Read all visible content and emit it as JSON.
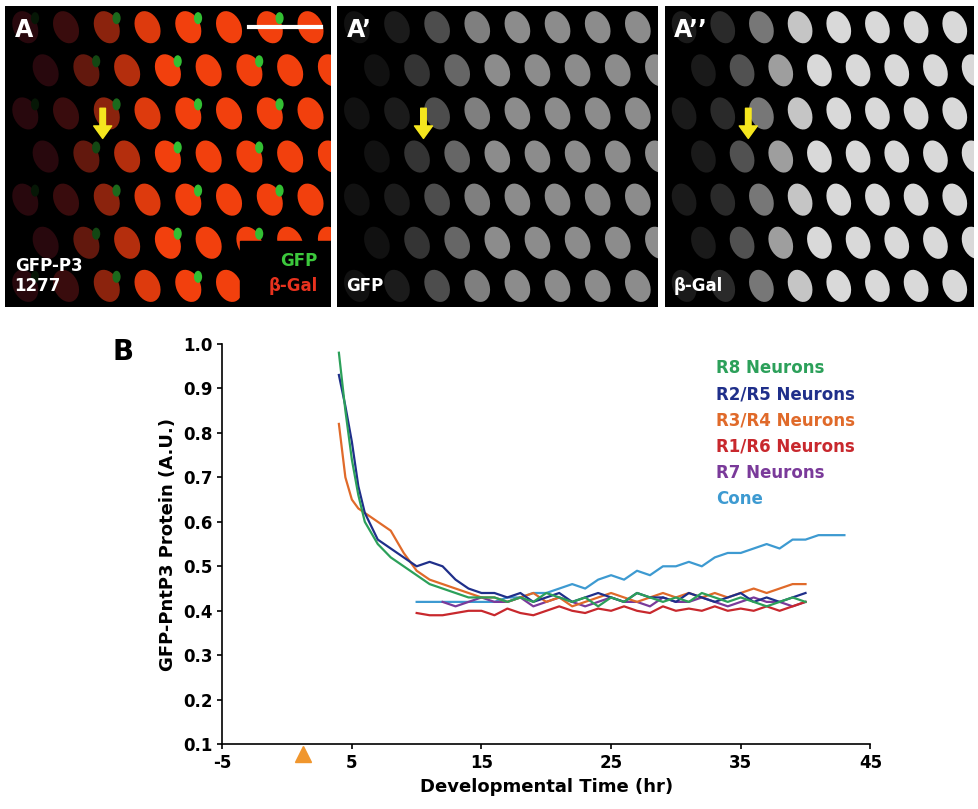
{
  "panels": [
    {
      "label": "A",
      "caption": "GFP-P3\n1277",
      "channels": [
        {
          "name": "GFP",
          "color": "#3cc83c"
        },
        {
          "name": "β-Gal",
          "color": "#e8321e"
        }
      ]
    },
    {
      "label": "A’",
      "channels": [
        {
          "name": "GFP",
          "color": "#ffffff"
        }
      ]
    },
    {
      "label": "A’’",
      "channels": [
        {
          "name": "β-Gal",
          "color": "#ffffff"
        }
      ]
    }
  ],
  "chart_data": {
    "type": "line",
    "panel_label": "B",
    "x_label": "Developmental Time (hr)",
    "y_label": "GFP-PntP3 Protein (A.U.)",
    "xlim": [
      -5,
      45
    ],
    "xticks": [
      -5,
      5,
      15,
      25,
      35,
      45
    ],
    "ylim": [
      0.1,
      1.0
    ],
    "yticks": [
      0.1,
      0.2,
      0.3,
      0.4,
      0.5,
      0.6,
      0.7,
      0.8,
      0.9,
      {
        "value": 1.0,
        "label": "1.0"
      }
    ],
    "grid": false,
    "legend": "upper right",
    "event_marker": {
      "x": 1.2,
      "color": "#f0962d",
      "marker": "triangle"
    },
    "series": [
      {
        "name": "R8 Neurons",
        "color": "#2ca05a",
        "x": [
          4,
          4.5,
          5,
          5.5,
          6,
          7,
          8,
          9,
          10,
          11,
          12,
          13,
          14,
          15,
          16,
          17,
          18,
          19,
          20,
          21,
          22,
          23,
          24,
          25,
          26,
          27,
          28,
          29,
          30,
          31,
          32,
          33,
          34,
          35,
          36,
          37,
          38,
          39,
          40
        ],
        "values": [
          0.98,
          0.85,
          0.74,
          0.66,
          0.6,
          0.55,
          0.52,
          0.5,
          0.48,
          0.46,
          0.45,
          0.44,
          0.43,
          0.43,
          0.43,
          0.42,
          0.43,
          0.42,
          0.44,
          0.43,
          0.42,
          0.43,
          0.41,
          0.43,
          0.42,
          0.44,
          0.43,
          0.42,
          0.43,
          0.42,
          0.44,
          0.43,
          0.42,
          0.43,
          0.42,
          0.41,
          0.42,
          0.43,
          0.42
        ]
      },
      {
        "name": "R2/R5 Neurons",
        "color": "#1f2f8a",
        "x": [
          4,
          4.5,
          5,
          5.5,
          6,
          7,
          8,
          9,
          10,
          11,
          12,
          13,
          14,
          15,
          16,
          17,
          18,
          19,
          20,
          21,
          22,
          23,
          24,
          25,
          26,
          27,
          28,
          29,
          30,
          31,
          32,
          33,
          34,
          35,
          36,
          37,
          38,
          39,
          40
        ],
        "values": [
          0.93,
          0.86,
          0.78,
          0.68,
          0.62,
          0.56,
          0.54,
          0.52,
          0.5,
          0.51,
          0.5,
          0.47,
          0.45,
          0.44,
          0.44,
          0.43,
          0.44,
          0.42,
          0.43,
          0.44,
          0.42,
          0.43,
          0.44,
          0.43,
          0.42,
          0.44,
          0.43,
          0.43,
          0.42,
          0.44,
          0.43,
          0.42,
          0.43,
          0.44,
          0.42,
          0.43,
          0.42,
          0.43,
          0.44
        ]
      },
      {
        "name": "R3/R4 Neurons",
        "color": "#e06a2a",
        "x": [
          4,
          4.5,
          5,
          5.5,
          6,
          7,
          8,
          9,
          10,
          11,
          12,
          13,
          14,
          15,
          16,
          17,
          18,
          19,
          20,
          21,
          22,
          23,
          24,
          25,
          26,
          27,
          28,
          29,
          30,
          31,
          32,
          33,
          34,
          35,
          36,
          37,
          38,
          39,
          40
        ],
        "values": [
          0.82,
          0.7,
          0.65,
          0.63,
          0.62,
          0.6,
          0.58,
          0.53,
          0.49,
          0.47,
          0.46,
          0.45,
          0.44,
          0.43,
          0.43,
          0.42,
          0.43,
          0.44,
          0.42,
          0.43,
          0.41,
          0.42,
          0.43,
          0.44,
          0.43,
          0.42,
          0.43,
          0.44,
          0.43,
          0.44,
          0.43,
          0.44,
          0.43,
          0.44,
          0.45,
          0.44,
          0.45,
          0.46,
          0.46
        ]
      },
      {
        "name": "R1/R6 Neurons",
        "color": "#c8282d",
        "x": [
          10,
          11,
          12,
          13,
          14,
          15,
          16,
          17,
          18,
          19,
          20,
          21,
          22,
          23,
          24,
          25,
          26,
          27,
          28,
          29,
          30,
          31,
          32,
          33,
          34,
          35,
          36,
          37,
          38,
          39,
          40
        ],
        "values": [
          0.395,
          0.39,
          0.39,
          0.395,
          0.4,
          0.4,
          0.39,
          0.405,
          0.395,
          0.39,
          0.4,
          0.41,
          0.4,
          0.395,
          0.405,
          0.4,
          0.41,
          0.4,
          0.395,
          0.41,
          0.4,
          0.405,
          0.4,
          0.41,
          0.4,
          0.405,
          0.4,
          0.41,
          0.4,
          0.41,
          0.42
        ]
      },
      {
        "name": "R7 Neurons",
        "color": "#7a3a9a",
        "x": [
          12,
          13,
          14,
          15,
          16,
          17,
          18,
          19,
          20,
          21,
          22,
          23,
          24,
          25,
          26,
          27,
          28,
          29,
          30,
          31,
          32,
          33,
          34,
          35,
          36,
          37,
          38,
          39,
          40
        ],
        "values": [
          0.42,
          0.41,
          0.42,
          0.43,
          0.42,
          0.42,
          0.43,
          0.41,
          0.42,
          0.43,
          0.42,
          0.41,
          0.42,
          0.43,
          0.42,
          0.42,
          0.41,
          0.43,
          0.42,
          0.42,
          0.43,
          0.42,
          0.41,
          0.42,
          0.43,
          0.42,
          0.42,
          0.41,
          0.42
        ]
      },
      {
        "name": "Cone",
        "color": "#3d9ad1",
        "x": [
          10,
          11,
          12,
          13,
          14,
          15,
          16,
          17,
          18,
          19,
          20,
          21,
          22,
          23,
          24,
          25,
          26,
          27,
          28,
          29,
          30,
          31,
          32,
          33,
          34,
          35,
          36,
          37,
          38,
          39,
          40,
          41,
          42,
          43
        ],
        "values": [
          0.42,
          0.42,
          0.42,
          0.42,
          0.42,
          0.42,
          0.42,
          0.43,
          0.43,
          0.44,
          0.44,
          0.45,
          0.46,
          0.45,
          0.47,
          0.48,
          0.47,
          0.49,
          0.48,
          0.5,
          0.5,
          0.51,
          0.5,
          0.52,
          0.53,
          0.53,
          0.54,
          0.55,
          0.54,
          0.56,
          0.56,
          0.57,
          0.57,
          0.57
        ]
      }
    ]
  }
}
